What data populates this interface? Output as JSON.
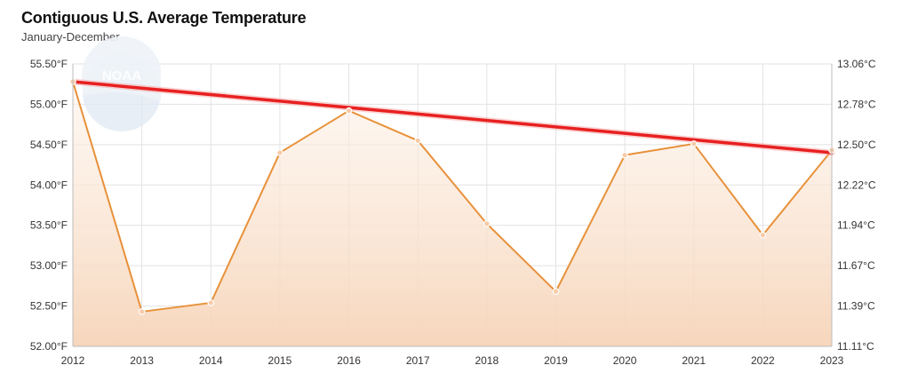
{
  "chart_data": {
    "type": "line",
    "title": "Contiguous U.S. Average Temperature",
    "subtitle": "January-December",
    "xlabel": "",
    "ylabel": "",
    "x": [
      "2012",
      "2013",
      "2014",
      "2015",
      "2016",
      "2017",
      "2018",
      "2019",
      "2020",
      "2021",
      "2022",
      "2023"
    ],
    "series": [
      {
        "values": [
          55.28,
          52.43,
          52.54,
          54.4,
          54.92,
          54.55,
          53.52,
          52.68,
          54.37,
          54.51,
          53.38,
          54.43
        ],
        "color": "#e8913a"
      }
    ],
    "trendline": {
      "start": 55.28,
      "end": 54.4,
      "color": "#e82020"
    },
    "y_left_ticks": [
      "52.00°F",
      "52.50°F",
      "53.00°F",
      "53.50°F",
      "54.00°F",
      "54.50°F",
      "55.00°F",
      "55.50°F"
    ],
    "y_right_ticks": [
      "11.11°C",
      "11.39°C",
      "11.67°C",
      "11.94°C",
      "12.22°C",
      "12.50°C",
      "12.78°C",
      "13.06°C"
    ],
    "ylim": [
      52.0,
      55.5
    ],
    "grid": true,
    "watermark": "NOAA",
    "area_color": "#f6d4b8"
  }
}
